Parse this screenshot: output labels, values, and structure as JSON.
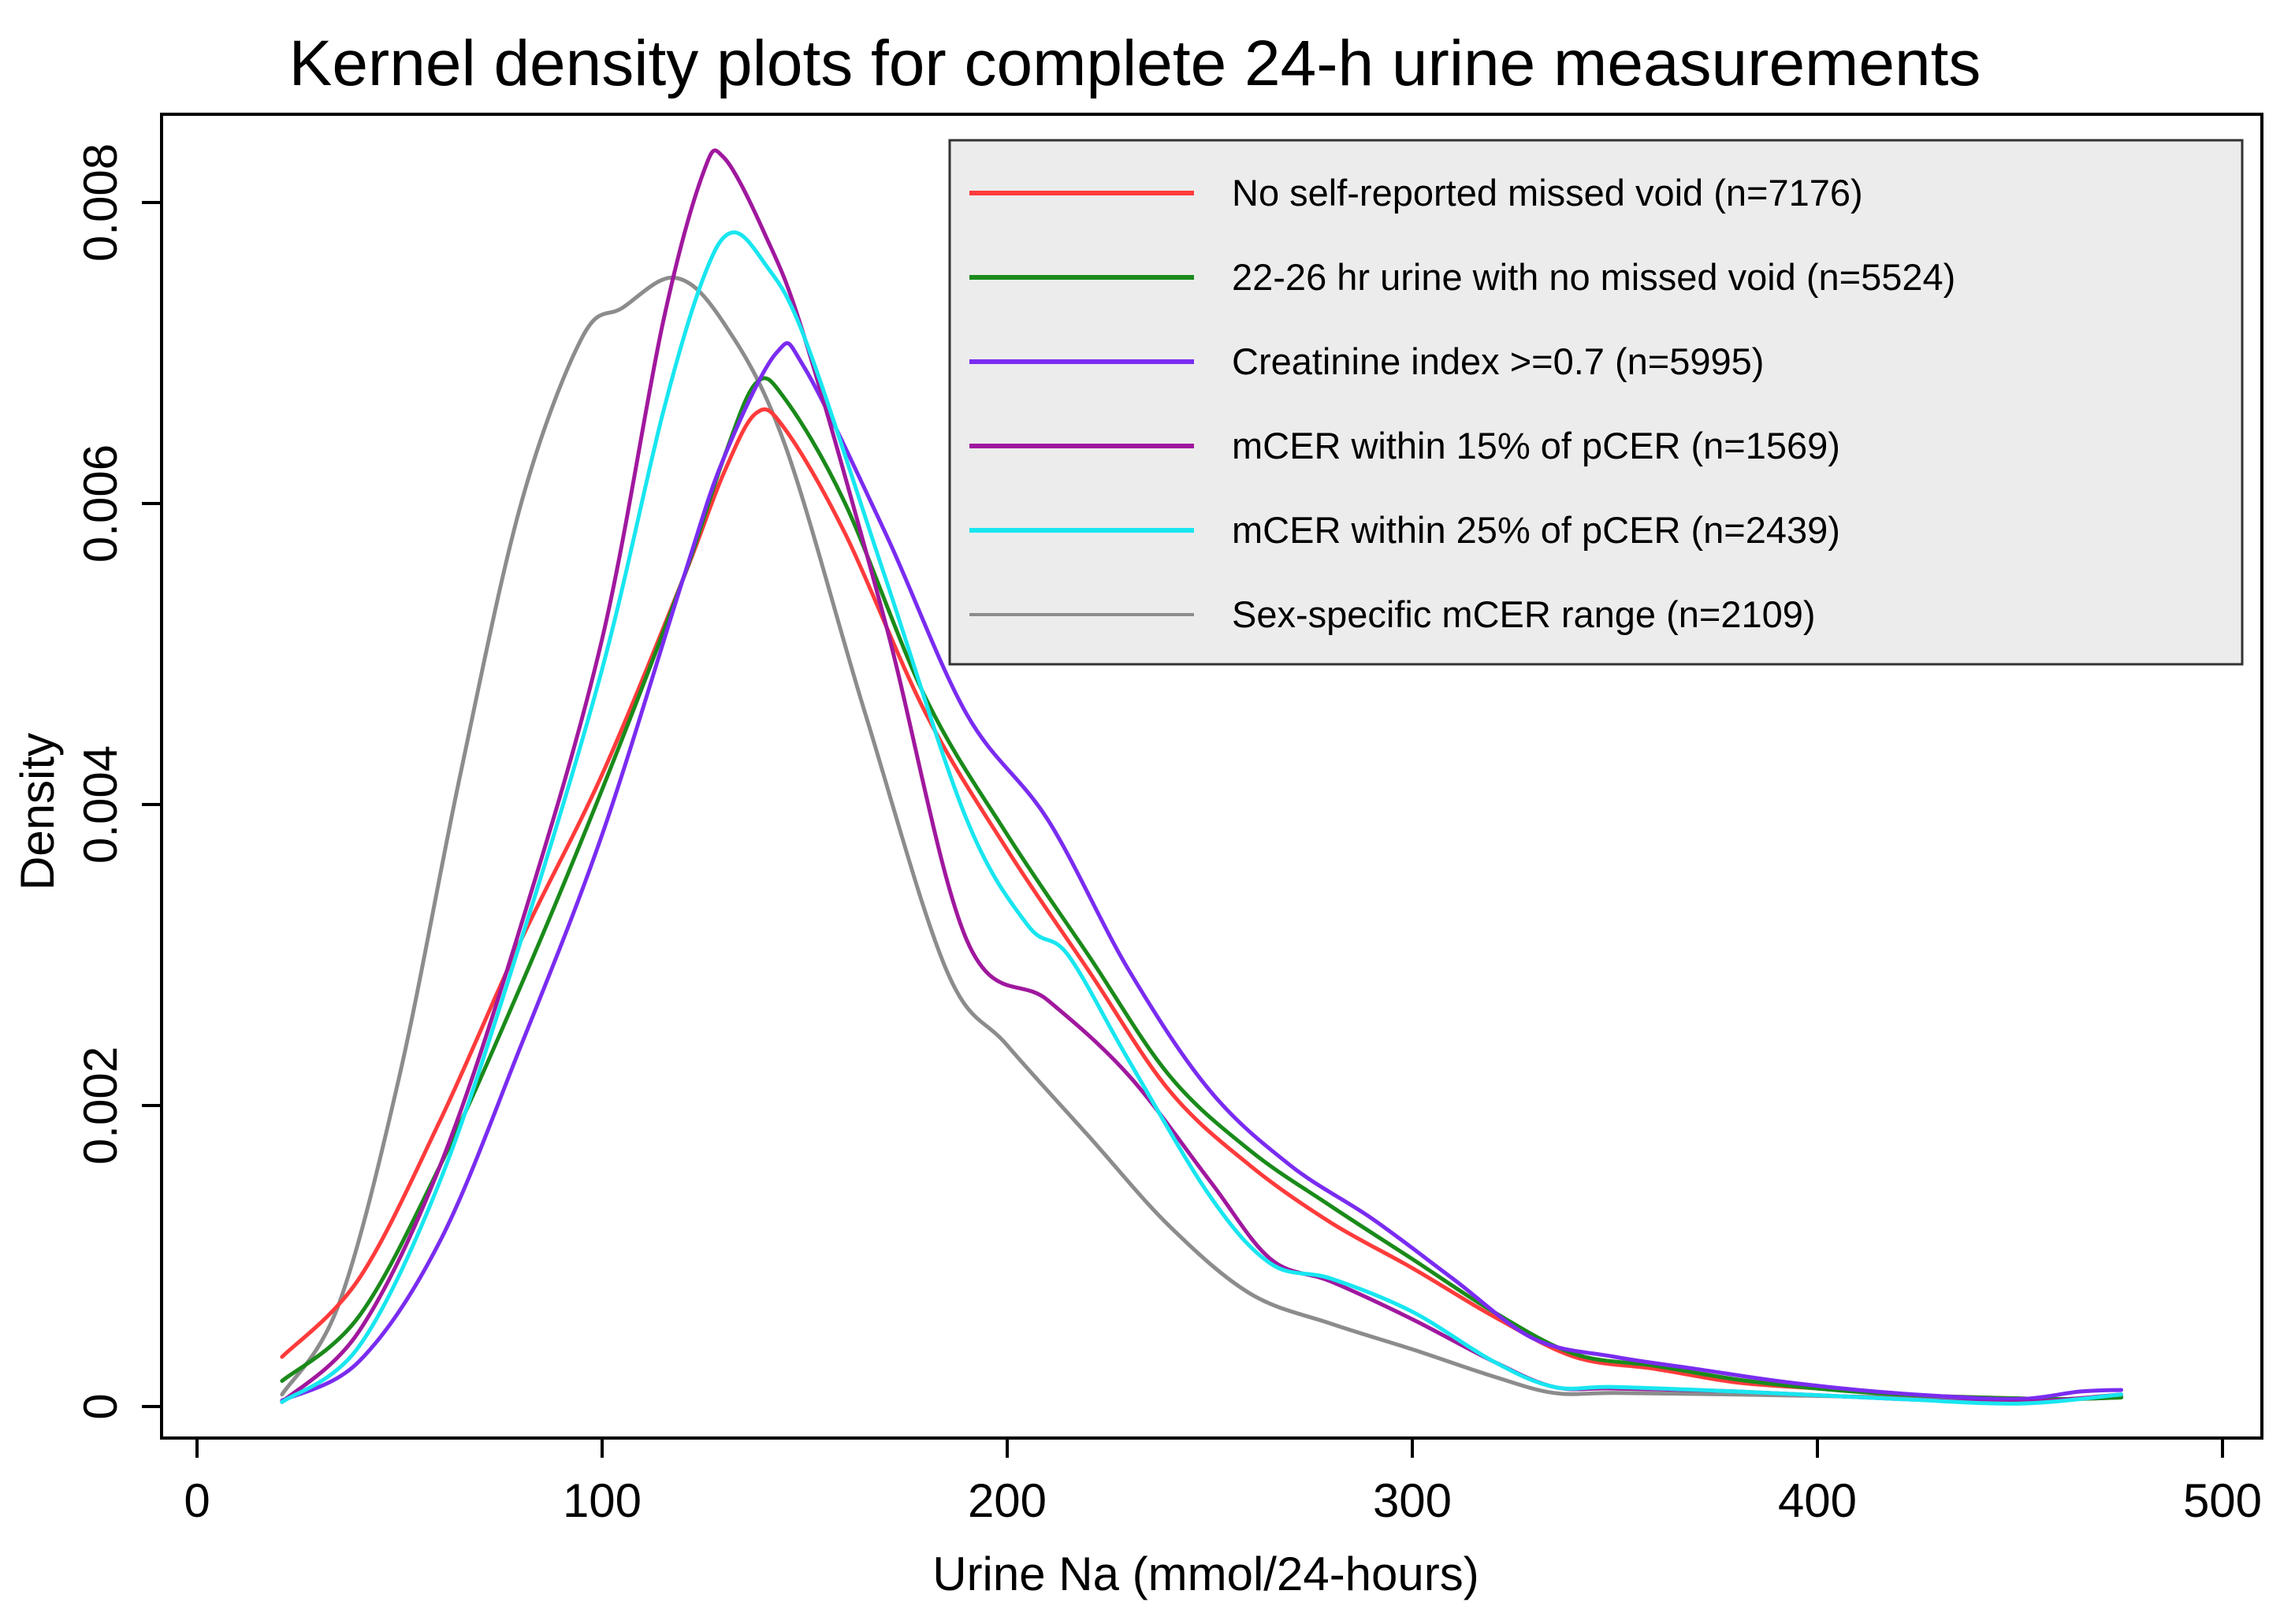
{
  "chart_data": {
    "type": "line",
    "title": "Kernel density plots for complete 24-h urine measurements",
    "xlabel": "Urine Na (mmol/24-hours)",
    "ylabel": "Density",
    "xlim": [
      0,
      500
    ],
    "ylim": [
      0,
      0.008
    ],
    "xticks": [
      0,
      100,
      200,
      300,
      400,
      500
    ],
    "xtick_labels": [
      "0",
      "100",
      "200",
      "300",
      "400",
      "500"
    ],
    "yticks": [
      0,
      0.002,
      0.004,
      0.006,
      0.008
    ],
    "ytick_labels": [
      "0",
      "0.002",
      "0.004",
      "0.006",
      "0.008"
    ],
    "grid": false,
    "legend_position": "top-right",
    "series": [
      {
        "name": "No self-reported missed void (n=7176)",
        "color": "#ff3b3b",
        "points": [
          [
            21,
            0.00033
          ],
          [
            40,
            0.00085
          ],
          [
            60,
            0.0019
          ],
          [
            80,
            0.0031
          ],
          [
            100,
            0.0042
          ],
          [
            120,
            0.0055
          ],
          [
            130,
            0.0062
          ],
          [
            138,
            0.0066
          ],
          [
            145,
            0.0065
          ],
          [
            160,
            0.0058
          ],
          [
            180,
            0.0046
          ],
          [
            200,
            0.0037
          ],
          [
            220,
            0.0029
          ],
          [
            240,
            0.0021
          ],
          [
            260,
            0.0016
          ],
          [
            280,
            0.00122
          ],
          [
            300,
            0.00092
          ],
          [
            320,
            0.0006
          ],
          [
            340,
            0.00033
          ],
          [
            360,
            0.00025
          ],
          [
            380,
            0.00016
          ],
          [
            400,
            0.00012
          ],
          [
            420,
            8e-05
          ],
          [
            440,
            6e-05
          ],
          [
            460,
            5e-05
          ],
          [
            475,
            6e-05
          ]
        ]
      },
      {
        "name": "22-26 hr urine with no missed void (n=5524)",
        "color": "#1a8a1a",
        "points": [
          [
            21,
            0.00017
          ],
          [
            40,
            0.0006
          ],
          [
            60,
            0.0016
          ],
          [
            80,
            0.0028
          ],
          [
            100,
            0.0041
          ],
          [
            120,
            0.0055
          ],
          [
            130,
            0.0063
          ],
          [
            138,
            0.0068
          ],
          [
            145,
            0.0067
          ],
          [
            160,
            0.006
          ],
          [
            180,
            0.0047
          ],
          [
            200,
            0.0038
          ],
          [
            220,
            0.003
          ],
          [
            240,
            0.0022
          ],
          [
            260,
            0.0017
          ],
          [
            280,
            0.00133
          ],
          [
            300,
            0.00098
          ],
          [
            320,
            0.00063
          ],
          [
            340,
            0.00035
          ],
          [
            360,
            0.00027
          ],
          [
            380,
            0.00018
          ],
          [
            400,
            0.00012
          ],
          [
            420,
            8e-05
          ],
          [
            440,
            6e-05
          ],
          [
            460,
            5e-05
          ],
          [
            475,
            6e-05
          ]
        ]
      },
      {
        "name": "Creatinine index >=0.7 (n=5995)",
        "color": "#7a2cf0",
        "points": [
          [
            21,
            4e-05
          ],
          [
            40,
            0.0003
          ],
          [
            60,
            0.0011
          ],
          [
            80,
            0.0024
          ],
          [
            100,
            0.0038
          ],
          [
            120,
            0.0055
          ],
          [
            130,
            0.0063
          ],
          [
            143,
            0.007
          ],
          [
            150,
            0.0069
          ],
          [
            170,
            0.0058
          ],
          [
            190,
            0.0046
          ],
          [
            210,
            0.0039
          ],
          [
            230,
            0.0029
          ],
          [
            250,
            0.0021
          ],
          [
            270,
            0.0016
          ],
          [
            290,
            0.00125
          ],
          [
            310,
            0.00085
          ],
          [
            330,
            0.00045
          ],
          [
            350,
            0.00033
          ],
          [
            370,
            0.00025
          ],
          [
            390,
            0.00017
          ],
          [
            410,
            0.00011
          ],
          [
            430,
            7e-05
          ],
          [
            450,
            5e-05
          ],
          [
            465,
            0.0001
          ],
          [
            475,
            0.00011
          ]
        ]
      },
      {
        "name": "mCER within 15% of pCER (n=1569)",
        "color": "#a0189e",
        "points": [
          [
            21,
            3e-05
          ],
          [
            40,
            0.0005
          ],
          [
            60,
            0.0016
          ],
          [
            80,
            0.0032
          ],
          [
            100,
            0.0051
          ],
          [
            115,
            0.0072
          ],
          [
            125,
            0.0082
          ],
          [
            130,
            0.0083
          ],
          [
            140,
            0.0078
          ],
          [
            150,
            0.0071
          ],
          [
            170,
            0.0052
          ],
          [
            190,
            0.0031
          ],
          [
            210,
            0.0027
          ],
          [
            230,
            0.0022
          ],
          [
            250,
            0.0015
          ],
          [
            265,
            0.00098
          ],
          [
            280,
            0.00083
          ],
          [
            300,
            0.00058
          ],
          [
            320,
            0.0003
          ],
          [
            335,
            0.00013
          ],
          [
            350,
            0.00012
          ],
          [
            380,
            0.0001
          ],
          [
            420,
            5e-05
          ],
          [
            450,
            3e-05
          ],
          [
            475,
            8e-05
          ]
        ]
      },
      {
        "name": "mCER within 25% of pCER (n=2439)",
        "color": "#18e6f0",
        "points": [
          [
            21,
            3e-05
          ],
          [
            40,
            0.0004
          ],
          [
            60,
            0.0015
          ],
          [
            80,
            0.0031
          ],
          [
            100,
            0.0049
          ],
          [
            115,
            0.0066
          ],
          [
            125,
            0.0075
          ],
          [
            132,
            0.0078
          ],
          [
            140,
            0.0076
          ],
          [
            150,
            0.0071
          ],
          [
            170,
            0.0055
          ],
          [
            190,
            0.0039
          ],
          [
            205,
            0.0032
          ],
          [
            215,
            0.003
          ],
          [
            230,
            0.0023
          ],
          [
            250,
            0.0014
          ],
          [
            265,
            0.00095
          ],
          [
            280,
            0.00085
          ],
          [
            300,
            0.00063
          ],
          [
            320,
            0.0003
          ],
          [
            335,
            0.00013
          ],
          [
            350,
            0.00013
          ],
          [
            380,
            0.0001
          ],
          [
            420,
            5e-05
          ],
          [
            450,
            2e-05
          ],
          [
            475,
            8e-05
          ]
        ]
      },
      {
        "name": "Sex-specific mCER range (n=2109)",
        "color": "#8c8c8c",
        "points": [
          [
            21,
            8e-05
          ],
          [
            35,
            0.00068
          ],
          [
            50,
            0.0022
          ],
          [
            65,
            0.0042
          ],
          [
            80,
            0.006
          ],
          [
            95,
            0.0071
          ],
          [
            105,
            0.0073
          ],
          [
            118,
            0.0075
          ],
          [
            130,
            0.0072
          ],
          [
            145,
            0.0064
          ],
          [
            165,
            0.0046
          ],
          [
            185,
            0.0029
          ],
          [
            200,
            0.0024
          ],
          [
            220,
            0.0018
          ],
          [
            240,
            0.0012
          ],
          [
            260,
            0.00075
          ],
          [
            280,
            0.00055
          ],
          [
            300,
            0.00038
          ],
          [
            320,
            0.0002
          ],
          [
            335,
            9e-05
          ],
          [
            350,
            9e-05
          ],
          [
            380,
            8e-05
          ],
          [
            420,
            6e-05
          ],
          [
            450,
            4e-05
          ],
          [
            475,
            7e-05
          ]
        ]
      }
    ]
  }
}
